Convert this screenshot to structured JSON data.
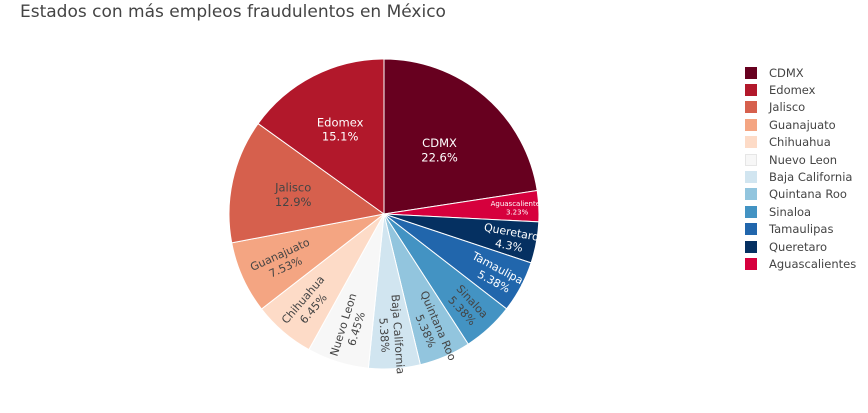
{
  "chart_data": {
    "type": "pie",
    "title": "Estados con más empleos fraudulentos en México",
    "slices": [
      {
        "label": "CDMX",
        "value": 22.6,
        "text": "22.6%",
        "color": "#67001f",
        "text_color": "#ffffff"
      },
      {
        "label": "Aguascalientes",
        "value": 3.23,
        "text": "3.23%",
        "color": "#d6003d",
        "text_color": "#ffffff"
      },
      {
        "label": "Queretaro",
        "value": 4.3,
        "text": "4.3%",
        "color": "#053061",
        "text_color": "#ffffff"
      },
      {
        "label": "Tamaulipas",
        "value": 5.38,
        "text": "5.38%",
        "color": "#2166ac",
        "text_color": "#ffffff"
      },
      {
        "label": "Sinaloa",
        "value": 5.38,
        "text": "5.38%",
        "color": "#4393c3",
        "text_color": "#444444"
      },
      {
        "label": "Quintana Roo",
        "value": 5.38,
        "text": "5.38%",
        "color": "#92c5de",
        "text_color": "#444444"
      },
      {
        "label": "Baja California",
        "value": 5.38,
        "text": "5.38%",
        "color": "#d1e5f0",
        "text_color": "#444444"
      },
      {
        "label": "Nuevo Leon",
        "value": 6.45,
        "text": "6.45%",
        "color": "#f7f7f7",
        "text_color": "#444444"
      },
      {
        "label": "Chihuahua",
        "value": 6.45,
        "text": "6.45%",
        "color": "#fddbc7",
        "text_color": "#444444"
      },
      {
        "label": "Guanajuato",
        "value": 7.53,
        "text": "7.53%",
        "color": "#f4a582",
        "text_color": "#444444"
      },
      {
        "label": "Jalisco",
        "value": 12.9,
        "text": "12.9%",
        "color": "#d6604d",
        "text_color": "#444444"
      },
      {
        "label": "Edomex",
        "value": 15.1,
        "text": "15.1%",
        "color": "#b2182b",
        "text_color": "#ffffff"
      }
    ],
    "legend": [
      {
        "label": "CDMX",
        "color": "#67001f"
      },
      {
        "label": "Edomex",
        "color": "#b2182b"
      },
      {
        "label": "Jalisco",
        "color": "#d6604d"
      },
      {
        "label": "Guanajuato",
        "color": "#f4a582"
      },
      {
        "label": "Chihuahua",
        "color": "#fddbc7"
      },
      {
        "label": "Nuevo Leon",
        "color": "#f7f7f7"
      },
      {
        "label": "Baja California",
        "color": "#d1e5f0"
      },
      {
        "label": "Quintana Roo",
        "color": "#92c5de"
      },
      {
        "label": "Sinaloa",
        "color": "#4393c3"
      },
      {
        "label": "Tamaulipas",
        "color": "#2166ac"
      },
      {
        "label": "Queretaro",
        "color": "#053061"
      },
      {
        "label": "Aguascalientes",
        "color": "#d6003d"
      }
    ],
    "legend_position": "right"
  }
}
